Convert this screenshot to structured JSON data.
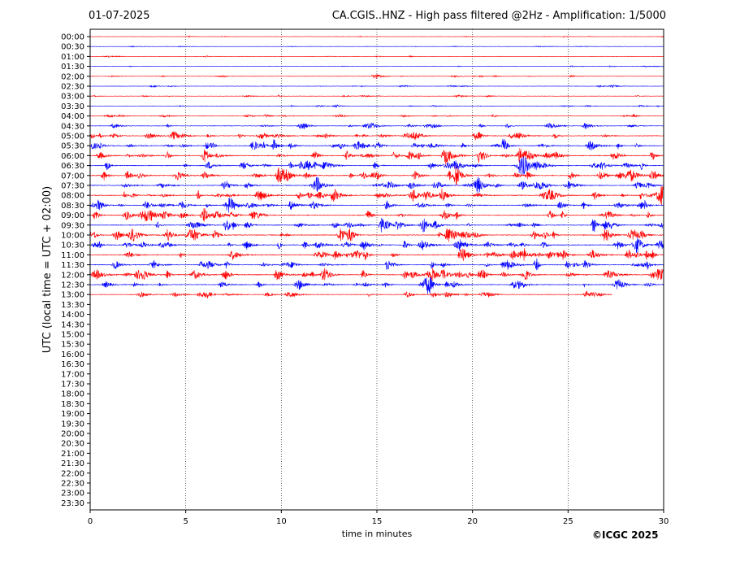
{
  "header": {
    "date": "01-07-2025",
    "title": "CA.CGIS..HNZ - High pass filtered @2Hz - Amplification: 1/5000"
  },
  "credit": "©ICGC 2025",
  "colors": {
    "trace_odd": "#ff0000",
    "trace_even": "#0000ff",
    "grid": "#000000"
  },
  "chart_data": {
    "type": "line",
    "xlabel": "time in minutes",
    "ylabel": "UTC (local time = UTC + 02:00)",
    "xlim": [
      0,
      30
    ],
    "x_ticks": [
      "0",
      "5",
      "10",
      "15",
      "20",
      "25",
      "30"
    ],
    "grid": "vertical dotted at 5-minute ticks",
    "y_ticks": [
      "00:00",
      "00:30",
      "01:00",
      "01:30",
      "02:00",
      "02:30",
      "03:00",
      "03:30",
      "04:00",
      "04:30",
      "05:00",
      "05:30",
      "06:00",
      "06:30",
      "07:00",
      "07:30",
      "08:00",
      "08:30",
      "09:00",
      "09:30",
      "10:00",
      "10:30",
      "11:00",
      "11:30",
      "12:00",
      "12:30",
      "13:00",
      "13:30",
      "14:00",
      "14:30",
      "15:00",
      "15:30",
      "16:00",
      "16:30",
      "17:00",
      "17:30",
      "18:00",
      "18:30",
      "19:00",
      "19:30",
      "20:00",
      "20:30",
      "21:00",
      "21:30",
      "22:00",
      "22:30",
      "23:00",
      "23:30"
    ],
    "recorded_rows": 27,
    "last_row_end_minute": 27.3,
    "trace_colors": [
      "red",
      "blue"
    ],
    "row_activity": [
      0.05,
      0.05,
      0.06,
      0.06,
      0.12,
      0.12,
      0.12,
      0.14,
      0.2,
      0.3,
      0.45,
      0.55,
      0.6,
      0.55,
      0.6,
      0.55,
      0.6,
      0.55,
      0.55,
      0.55,
      0.6,
      0.55,
      0.6,
      0.55,
      0.65,
      0.5,
      0.35
    ],
    "events": [
      {
        "row": "02:00",
        "minute": 14.9,
        "amp": 0.35
      },
      {
        "row": "05:00",
        "minute": 17.0,
        "amp": 0.5
      },
      {
        "row": "06:00",
        "minute": 18.6,
        "amp": 0.7
      },
      {
        "row": "06:00",
        "minute": 22.5,
        "amp": 1.0
      },
      {
        "row": "06:00",
        "minute": 22.9,
        "amp": 0.6
      },
      {
        "row": "06:30",
        "minute": 6.2,
        "amp": 0.5
      },
      {
        "row": "06:30",
        "minute": 22.6,
        "amp": 0.5
      },
      {
        "row": "07:00",
        "minute": 19.2,
        "amp": 0.5
      },
      {
        "row": "07:30",
        "minute": 16.8,
        "amp": 0.5
      },
      {
        "row": "08:00",
        "minute": 17.6,
        "amp": 0.7
      },
      {
        "row": "08:00",
        "minute": 30.0,
        "amp": 0.6
      },
      {
        "row": "09:00",
        "minute": 3.2,
        "amp": 0.5
      },
      {
        "row": "10:00",
        "minute": 13.1,
        "amp": 0.65
      },
      {
        "row": "10:00",
        "minute": 18.9,
        "amp": 0.5
      },
      {
        "row": "10:00",
        "minute": 28.3,
        "amp": 0.55
      },
      {
        "row": "10:30",
        "minute": 28.5,
        "amp": 0.5
      },
      {
        "row": "11:00",
        "minute": 28.2,
        "amp": 0.55
      },
      {
        "row": "11:30",
        "minute": 3.3,
        "amp": 0.55
      },
      {
        "row": "12:00",
        "minute": 16.5,
        "amp": 0.55
      },
      {
        "row": "12:00",
        "minute": 29.9,
        "amp": 0.65
      }
    ]
  }
}
